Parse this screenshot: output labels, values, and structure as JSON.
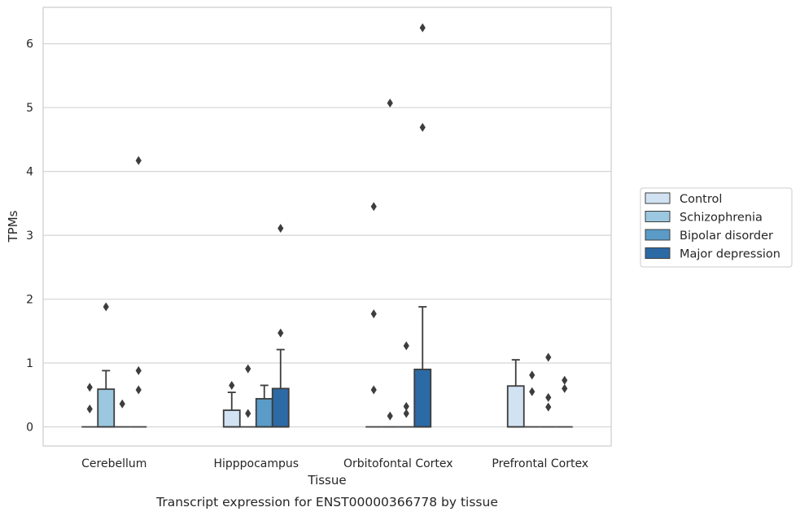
{
  "caption": "Transcript expression for ENST00000366778 by tissue",
  "chart_data": {
    "type": "box",
    "xlabel": "Tissue",
    "ylabel": "TPMs",
    "ylim": [
      -0.3,
      6.57
    ],
    "yticks": [
      0,
      1,
      2,
      3,
      4,
      5,
      6
    ],
    "grid": "horizontal",
    "legend_position": "right",
    "categories": [
      "Cerebellum",
      "Hipppocampus",
      "Orbitofontal Cortex",
      "Prefrontal Cortex"
    ],
    "series": [
      {
        "name": "Control",
        "color": "#d1e2f2",
        "boxes": [
          {
            "q1": 0,
            "median": 0,
            "q3": 0,
            "whisker_low": 0,
            "whisker_high": 0,
            "outliers": [
              0.28,
              0.62
            ]
          },
          {
            "q1": 0,
            "median": 0,
            "q3": 0.26,
            "whisker_low": 0,
            "whisker_high": 0.54,
            "outliers": [
              0.65
            ]
          },
          {
            "q1": 0,
            "median": 0,
            "q3": 0,
            "whisker_low": 0,
            "whisker_high": 0,
            "outliers": [
              0.58,
              1.77,
              3.45
            ]
          },
          {
            "q1": 0,
            "median": 0,
            "q3": 0.64,
            "whisker_low": 0,
            "whisker_high": 1.05,
            "outliers": []
          }
        ]
      },
      {
        "name": "Schizophrenia",
        "color": "#9bc7e0",
        "boxes": [
          {
            "q1": 0,
            "median": 0,
            "q3": 0.59,
            "whisker_low": 0,
            "whisker_high": 0.88,
            "outliers": [
              1.88
            ]
          },
          {
            "q1": 0,
            "median": 0,
            "q3": 0,
            "whisker_low": 0,
            "whisker_high": 0,
            "outliers": [
              0.21,
              0.91
            ]
          },
          {
            "q1": 0,
            "median": 0,
            "q3": 0,
            "whisker_low": 0,
            "whisker_high": 0,
            "outliers": [
              0.17,
              5.07
            ]
          },
          {
            "q1": 0,
            "median": 0,
            "q3": 0,
            "whisker_low": 0,
            "whisker_high": 0,
            "outliers": [
              0.55,
              0.81
            ]
          }
        ]
      },
      {
        "name": "Bipolar disorder",
        "color": "#5a9bc8",
        "boxes": [
          {
            "q1": 0,
            "median": 0,
            "q3": 0,
            "whisker_low": 0,
            "whisker_high": 0,
            "outliers": [
              0.36
            ]
          },
          {
            "q1": 0,
            "median": 0,
            "q3": 0.44,
            "whisker_low": 0,
            "whisker_high": 0.65,
            "outliers": []
          },
          {
            "q1": 0,
            "median": 0,
            "q3": 0,
            "whisker_low": 0,
            "whisker_high": 0,
            "outliers": [
              0.21,
              0.32,
              1.27
            ]
          },
          {
            "q1": 0,
            "median": 0,
            "q3": 0,
            "whisker_low": 0,
            "whisker_high": 0,
            "outliers": [
              0.31,
              0.46,
              1.09
            ]
          }
        ]
      },
      {
        "name": "Major depression",
        "color": "#2c6aa5",
        "boxes": [
          {
            "q1": 0,
            "median": 0,
            "q3": 0,
            "whisker_low": 0,
            "whisker_high": 0,
            "outliers": [
              0.58,
              0.88,
              4.17
            ]
          },
          {
            "q1": 0,
            "median": 0,
            "q3": 0.6,
            "whisker_low": 0,
            "whisker_high": 1.21,
            "outliers": [
              1.47,
              3.11
            ]
          },
          {
            "q1": 0,
            "median": 0,
            "q3": 0.9,
            "whisker_low": 0,
            "whisker_high": 1.88,
            "outliers": [
              4.69,
              6.25
            ]
          },
          {
            "q1": 0,
            "median": 0,
            "q3": 0,
            "whisker_low": 0,
            "whisker_high": 0,
            "outliers": [
              0.6,
              0.73
            ]
          }
        ]
      }
    ]
  }
}
